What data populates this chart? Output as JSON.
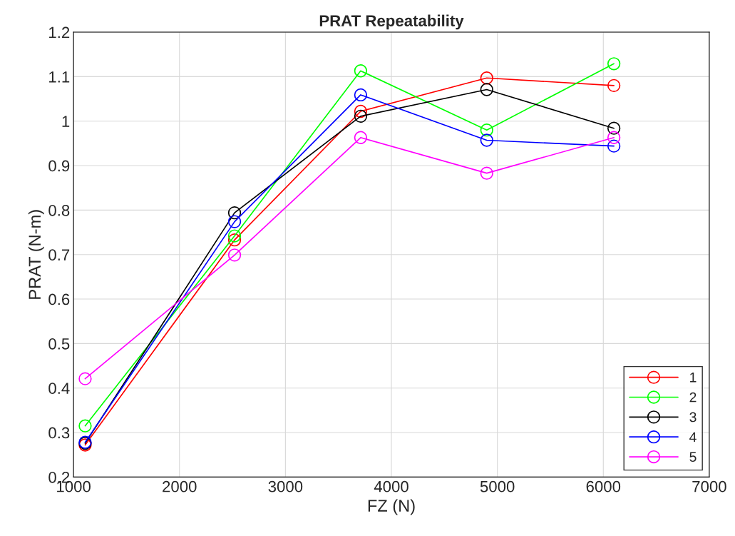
{
  "chart_data": {
    "type": "line",
    "title": "PRAT Repeatability",
    "xlabel": "FZ (N)",
    "ylabel": "PRAT (N-m)",
    "x": [
      1110,
      2520,
      3710,
      4900,
      6100
    ],
    "series": [
      {
        "name": "1",
        "color": "#ff0000",
        "values": [
          0.272,
          0.733,
          1.022,
          1.097,
          1.08
        ]
      },
      {
        "name": "2",
        "color": "#00ff00",
        "values": [
          0.315,
          0.742,
          1.113,
          0.98,
          1.129
        ]
      },
      {
        "name": "3",
        "color": "#000000",
        "values": [
          0.276,
          0.794,
          1.011,
          1.071,
          0.984
        ]
      },
      {
        "name": "4",
        "color": "#0000ff",
        "values": [
          0.278,
          0.774,
          1.059,
          0.957,
          0.944
        ]
      },
      {
        "name": "5",
        "color": "#ff00ff",
        "values": [
          0.421,
          0.699,
          0.963,
          0.883,
          0.963
        ]
      }
    ],
    "xlim": [
      1000,
      7000
    ],
    "xticks": [
      1000,
      2000,
      3000,
      4000,
      5000,
      6000,
      7000
    ],
    "ylim": [
      0.2,
      1.2
    ],
    "yticks": [
      0.2,
      0.3,
      0.4,
      0.5,
      0.6,
      0.7,
      0.8,
      0.9,
      {
        "value": 1,
        "label": "1"
      },
      1.1,
      1.2
    ],
    "grid": true,
    "legend": "bottom right",
    "marker": "circle",
    "line_style": "solid"
  }
}
